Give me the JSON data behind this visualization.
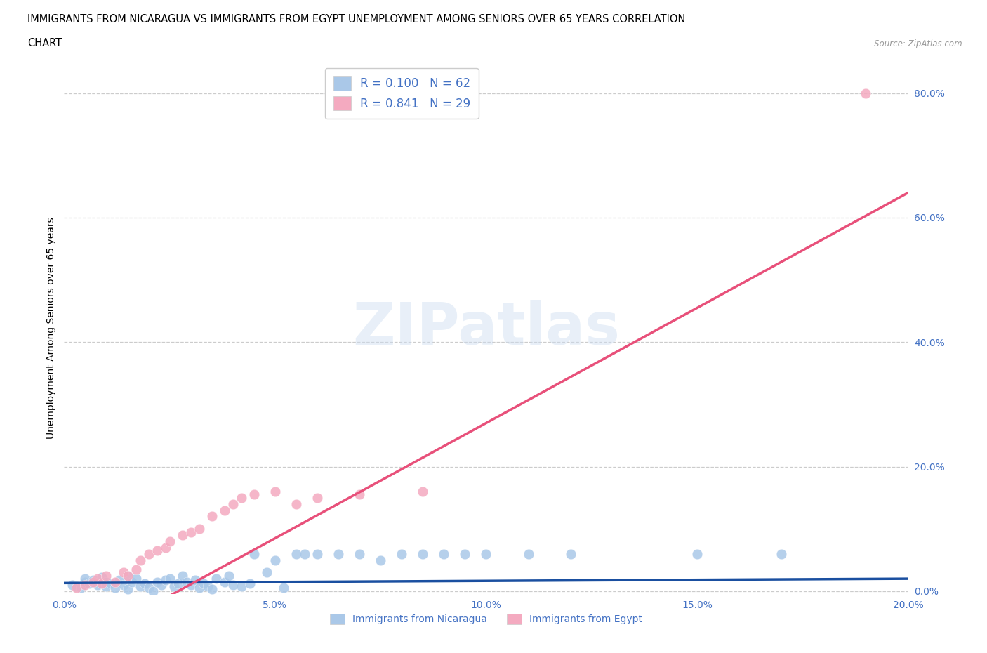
{
  "title_line1": "IMMIGRANTS FROM NICARAGUA VS IMMIGRANTS FROM EGYPT UNEMPLOYMENT AMONG SENIORS OVER 65 YEARS CORRELATION",
  "title_line2": "CHART",
  "source": "Source: ZipAtlas.com",
  "ylabel": "Unemployment Among Seniors over 65 years",
  "xlim": [
    0.0,
    0.2
  ],
  "ylim": [
    -0.005,
    0.85
  ],
  "xticks": [
    0.0,
    0.05,
    0.1,
    0.15,
    0.2
  ],
  "yticks": [
    0.0,
    0.2,
    0.4,
    0.6,
    0.8
  ],
  "ytick_labels": [
    "0.0%",
    "20.0%",
    "40.0%",
    "60.0%",
    "80.0%"
  ],
  "xtick_labels": [
    "0.0%",
    "5.0%",
    "10.0%",
    "15.0%",
    "20.0%"
  ],
  "nicaragua_color": "#aac8e8",
  "egypt_color": "#f4aac0",
  "nicaragua_line_color": "#1a4fa0",
  "egypt_line_color": "#e8507a",
  "R_nicaragua": 0.1,
  "N_nicaragua": 62,
  "R_egypt": 0.841,
  "N_egypt": 29,
  "legend_label_nicaragua": "Immigrants from Nicaragua",
  "legend_label_egypt": "Immigrants from Egypt",
  "nicaragua_x": [
    0.002,
    0.003,
    0.004,
    0.005,
    0.005,
    0.006,
    0.007,
    0.008,
    0.009,
    0.01,
    0.01,
    0.011,
    0.012,
    0.013,
    0.014,
    0.015,
    0.015,
    0.016,
    0.017,
    0.018,
    0.019,
    0.02,
    0.021,
    0.022,
    0.023,
    0.024,
    0.025,
    0.026,
    0.027,
    0.028,
    0.029,
    0.03,
    0.031,
    0.032,
    0.033,
    0.034,
    0.035,
    0.036,
    0.038,
    0.039,
    0.04,
    0.042,
    0.044,
    0.045,
    0.048,
    0.05,
    0.052,
    0.055,
    0.057,
    0.06,
    0.065,
    0.07,
    0.075,
    0.08,
    0.085,
    0.09,
    0.095,
    0.1,
    0.11,
    0.12,
    0.15,
    0.17
  ],
  "nicaragua_y": [
    0.01,
    0.008,
    0.005,
    0.015,
    0.02,
    0.012,
    0.018,
    0.01,
    0.022,
    0.015,
    0.008,
    0.012,
    0.005,
    0.018,
    0.01,
    0.025,
    0.003,
    0.015,
    0.02,
    0.008,
    0.012,
    0.006,
    0.0,
    0.015,
    0.01,
    0.018,
    0.02,
    0.008,
    0.012,
    0.025,
    0.015,
    0.01,
    0.018,
    0.005,
    0.012,
    0.008,
    0.003,
    0.02,
    0.015,
    0.025,
    0.01,
    0.008,
    0.012,
    0.06,
    0.03,
    0.05,
    0.005,
    0.06,
    0.06,
    0.06,
    0.06,
    0.06,
    0.05,
    0.06,
    0.06,
    0.06,
    0.06,
    0.06,
    0.06,
    0.06,
    0.06,
    0.06
  ],
  "egypt_x": [
    0.003,
    0.005,
    0.007,
    0.008,
    0.009,
    0.01,
    0.012,
    0.014,
    0.015,
    0.017,
    0.018,
    0.02,
    0.022,
    0.024,
    0.025,
    0.028,
    0.03,
    0.032,
    0.035,
    0.038,
    0.04,
    0.042,
    0.045,
    0.05,
    0.055,
    0.06,
    0.07,
    0.085,
    0.19
  ],
  "egypt_y": [
    0.005,
    0.01,
    0.015,
    0.02,
    0.012,
    0.025,
    0.015,
    0.03,
    0.025,
    0.035,
    0.05,
    0.06,
    0.065,
    0.07,
    0.08,
    0.09,
    0.095,
    0.1,
    0.12,
    0.13,
    0.14,
    0.15,
    0.155,
    0.16,
    0.14,
    0.15,
    0.155,
    0.16,
    0.8
  ]
}
